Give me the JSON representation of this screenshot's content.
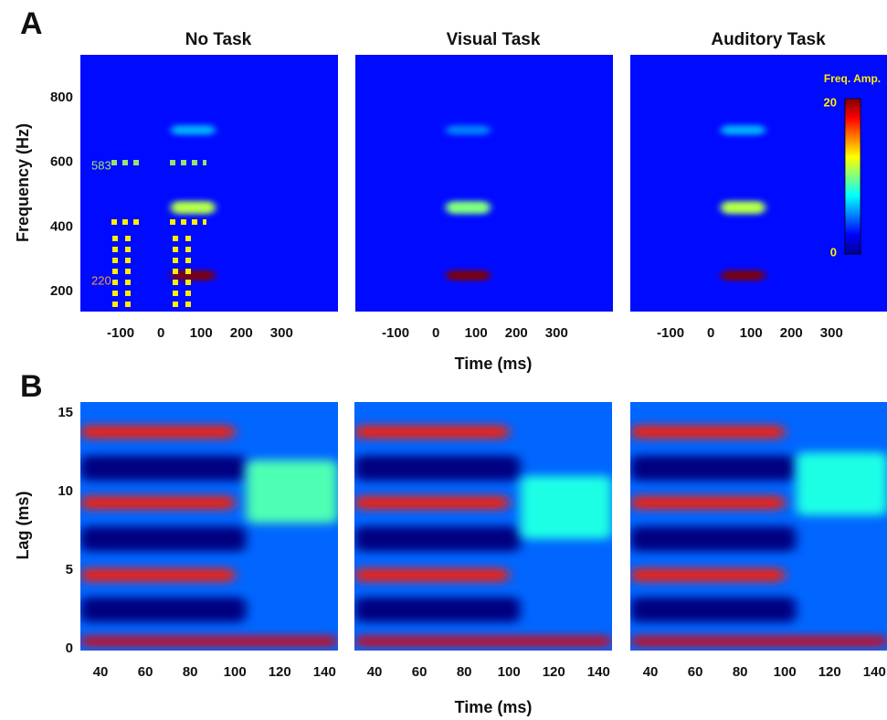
{
  "chart_data": [
    {
      "type": "heatmap",
      "panel_label": "A",
      "ylabel": "Frequency (Hz)",
      "xlabel": "Time (ms)",
      "xlim": [
        -200,
        440
      ],
      "xticks": [
        -100,
        0,
        100,
        200,
        300
      ],
      "ylim": [
        138,
        933
      ],
      "yticks": [
        200,
        400,
        600,
        800
      ],
      "colorbar": {
        "label": "Freq. Amp.",
        "clim": [
          0,
          20
        ]
      },
      "annotations": [
        "583",
        "220"
      ],
      "plots": [
        {
          "title": "No Task",
          "background": 3,
          "bands": [
            {
              "center": 250,
              "width": 30,
              "t0": 25,
              "t1": 135,
              "level": 20
            },
            {
              "center": 460,
              "width": 40,
              "t0": 25,
              "t1": 135,
              "level": 11
            },
            {
              "center": 700,
              "width": 30,
              "t0": 25,
              "t1": 135,
              "level": 6
            }
          ]
        },
        {
          "title": "Visual Task",
          "background": 3,
          "bands": [
            {
              "center": 250,
              "width": 30,
              "t0": 25,
              "t1": 135,
              "level": 20
            },
            {
              "center": 460,
              "width": 40,
              "t0": 25,
              "t1": 135,
              "level": 10
            },
            {
              "center": 700,
              "width": 30,
              "t0": 25,
              "t1": 135,
              "level": 5
            }
          ]
        },
        {
          "title": "Auditory  Task",
          "background": 3,
          "bands": [
            {
              "center": 250,
              "width": 30,
              "t0": 25,
              "t1": 135,
              "level": 20
            },
            {
              "center": 460,
              "width": 40,
              "t0": 25,
              "t1": 135,
              "level": 11
            },
            {
              "center": 700,
              "width": 30,
              "t0": 25,
              "t1": 135,
              "level": 6
            }
          ]
        }
      ]
    },
    {
      "type": "heatmap",
      "panel_label": "B",
      "ylabel": "Lag (ms)",
      "xlabel": "Time (ms)",
      "xlim": [
        31,
        146
      ],
      "xticks": [
        40,
        60,
        80,
        100,
        120,
        140
      ],
      "ylim": [
        -0.1,
        15.7
      ],
      "yticks": [
        0,
        5,
        10,
        15
      ],
      "plots": [
        {
          "background": 5,
          "bands": [
            {
              "center": 2.5,
              "width": 1.6,
              "t0": 31,
              "t1": 105,
              "level": 0
            },
            {
              "center": 7,
              "width": 1.6,
              "t0": 31,
              "t1": 105,
              "level": 0
            },
            {
              "center": 11.5,
              "width": 1.6,
              "t0": 31,
              "t1": 105,
              "level": 0
            },
            {
              "center": 10,
              "width": 4,
              "t0": 105,
              "t1": 146,
              "level": 9
            },
            {
              "center": 0.5,
              "width": 0.6,
              "t0": 31,
              "t1": 146,
              "level": 18
            },
            {
              "center": 4.7,
              "width": 0.8,
              "t0": 31,
              "t1": 100,
              "level": 17
            },
            {
              "center": 9.3,
              "width": 0.8,
              "t0": 31,
              "t1": 100,
              "level": 17
            },
            {
              "center": 13.8,
              "width": 0.8,
              "t0": 31,
              "t1": 100,
              "level": 17
            }
          ]
        },
        {
          "background": 5,
          "bands": [
            {
              "center": 2.5,
              "width": 1.6,
              "t0": 31,
              "t1": 105,
              "level": 0
            },
            {
              "center": 7,
              "width": 1.6,
              "t0": 31,
              "t1": 105,
              "level": 0
            },
            {
              "center": 11.5,
              "width": 1.6,
              "t0": 31,
              "t1": 105,
              "level": 0
            },
            {
              "center": 9,
              "width": 4,
              "t0": 105,
              "t1": 146,
              "level": 8
            },
            {
              "center": 0.5,
              "width": 0.6,
              "t0": 31,
              "t1": 146,
              "level": 18
            },
            {
              "center": 4.7,
              "width": 0.8,
              "t0": 31,
              "t1": 100,
              "level": 17
            },
            {
              "center": 9.3,
              "width": 0.8,
              "t0": 31,
              "t1": 100,
              "level": 17
            },
            {
              "center": 13.8,
              "width": 0.8,
              "t0": 31,
              "t1": 100,
              "level": 17
            }
          ]
        },
        {
          "background": 5,
          "bands": [
            {
              "center": 2.5,
              "width": 1.6,
              "t0": 31,
              "t1": 105,
              "level": 0
            },
            {
              "center": 7,
              "width": 1.6,
              "t0": 31,
              "t1": 105,
              "level": 0
            },
            {
              "center": 11.5,
              "width": 1.6,
              "t0": 31,
              "t1": 105,
              "level": 0
            },
            {
              "center": 10.5,
              "width": 4,
              "t0": 105,
              "t1": 146,
              "level": 8
            },
            {
              "center": 0.5,
              "width": 0.6,
              "t0": 31,
              "t1": 146,
              "level": 18
            },
            {
              "center": 4.7,
              "width": 0.8,
              "t0": 31,
              "t1": 100,
              "level": 17
            },
            {
              "center": 9.3,
              "width": 0.8,
              "t0": 31,
              "t1": 100,
              "level": 17
            },
            {
              "center": 13.8,
              "width": 0.8,
              "t0": 31,
              "t1": 100,
              "level": 17
            }
          ]
        }
      ]
    }
  ]
}
